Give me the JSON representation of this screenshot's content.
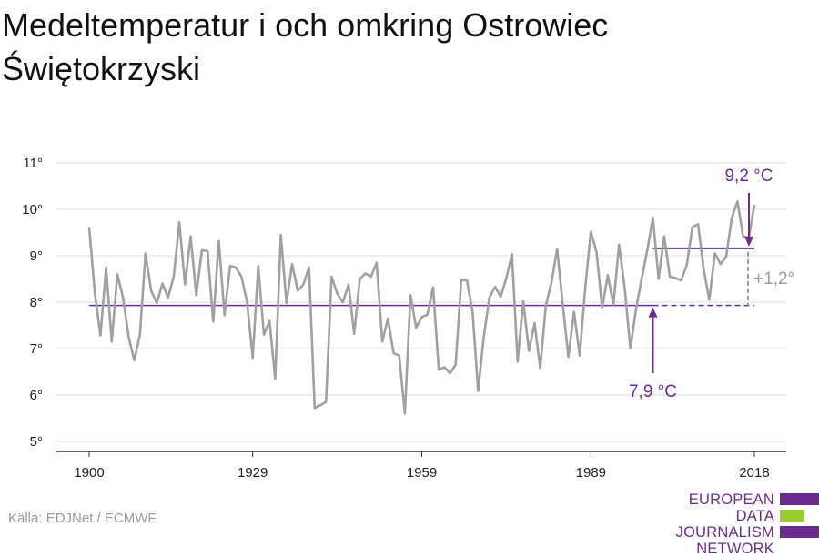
{
  "title": "Medeltemperatur i och omkring Ostrowiec Świętokrzyski",
  "source": "Källa: EDJNet / ECMWF",
  "logo": {
    "lines": [
      "EUROPEAN",
      "DATA JOURNALISM",
      "NETWORK"
    ],
    "colors": [
      "#6b2c91",
      "#9acd32",
      "#6b2c91"
    ]
  },
  "colors": {
    "series": "#a0a0a0",
    "accent": "#6b2c91",
    "delta": "#9a9a9a",
    "grid": "#dddddd",
    "axis": "#333333"
  },
  "chart_data": {
    "type": "line",
    "title": "Medeltemperatur i och omkring Ostrowiec Świętokrzyski",
    "ylim": [
      5,
      11
    ],
    "xlim": [
      1900,
      2018
    ],
    "y_ticks": [
      5,
      6,
      7,
      8,
      9,
      10,
      11
    ],
    "y_tick_labels": [
      "5°",
      "6°",
      "7°",
      "8°",
      "9°",
      "10°",
      "11°"
    ],
    "x_ticks": [
      1900,
      1929,
      1959,
      1989,
      2018
    ],
    "x_tick_labels": [
      "1900",
      "1929",
      "1959",
      "1989",
      "2018"
    ],
    "grid": true,
    "series": [
      {
        "x": [
          1900,
          1901,
          1902,
          1903,
          1904,
          1905,
          1906,
          1907,
          1908,
          1909,
          1910,
          1911,
          1912,
          1913,
          1914,
          1915,
          1916,
          1917,
          1918,
          1919,
          1920,
          1921,
          1922,
          1923,
          1924,
          1925,
          1926,
          1927,
          1928,
          1929,
          1930,
          1931,
          1932,
          1933,
          1934,
          1935,
          1936,
          1937,
          1938,
          1939,
          1940,
          1941,
          1942,
          1943,
          1944,
          1945,
          1946,
          1947,
          1948,
          1949,
          1950,
          1951,
          1952,
          1953,
          1954,
          1955,
          1956,
          1957,
          1958,
          1959,
          1960,
          1961,
          1962,
          1963,
          1964,
          1965,
          1966,
          1967,
          1968,
          1969,
          1970,
          1971,
          1972,
          1973,
          1974,
          1975,
          1976,
          1977,
          1978,
          1979,
          1980,
          1981,
          1982,
          1983,
          1984,
          1985,
          1986,
          1987,
          1988,
          1989,
          1990,
          1991,
          1992,
          1993,
          1994,
          1995,
          1996,
          1997,
          1998,
          1999,
          2000,
          2001,
          2002,
          2003,
          2004,
          2005,
          2006,
          2007,
          2008,
          2009,
          2010,
          2011,
          2012,
          2013,
          2014,
          2015,
          2016,
          2017,
          2018
        ],
        "values": [
          9.62,
          8.2,
          7.28,
          8.75,
          7.15,
          8.6,
          8.1,
          7.25,
          6.75,
          7.3,
          9.05,
          8.25,
          7.98,
          8.4,
          8.1,
          8.55,
          9.72,
          8.38,
          9.42,
          8.15,
          9.12,
          9.1,
          7.58,
          9.32,
          7.72,
          8.78,
          8.75,
          8.55,
          8.0,
          6.8,
          8.78,
          7.3,
          7.6,
          6.35,
          9.45,
          7.98,
          8.82,
          8.25,
          8.38,
          8.75,
          5.72,
          5.78,
          5.85,
          8.55,
          8.18,
          8.0,
          8.38,
          7.32,
          8.5,
          8.62,
          8.55,
          8.85,
          7.15,
          7.65,
          6.9,
          6.85,
          5.6,
          8.15,
          7.45,
          7.68,
          7.73,
          8.32,
          6.55,
          6.6,
          6.47,
          6.65,
          8.48,
          8.47,
          7.8,
          6.08,
          7.25,
          8.1,
          8.33,
          8.12,
          8.52,
          9.04,
          6.72,
          8.02,
          6.95,
          7.55,
          6.58,
          7.92,
          8.42,
          9.15,
          7.95,
          6.82,
          7.79,
          6.85,
          8.32,
          9.52,
          9.08,
          7.88,
          8.58,
          7.95,
          9.24,
          8.3,
          7.0,
          7.85,
          8.5,
          9.12,
          9.82,
          8.5,
          9.42,
          8.55,
          8.52,
          8.47,
          8.8,
          9.62,
          9.68,
          8.72,
          8.05,
          9.05,
          8.82,
          8.98,
          9.82,
          10.17,
          9.42,
          9.38,
          10.1
        ]
      }
    ],
    "reference_lines": [
      {
        "label": "7,9 °C",
        "value": 7.93,
        "x_start": 1900,
        "x_end": 2018
      },
      {
        "label": "9,2 °C",
        "value": 9.16,
        "x_start": 2000,
        "x_end": 2018
      }
    ],
    "annotations": {
      "baseline_label": "7,9 °C",
      "recent_label": "9,2 °C",
      "delta_label": "+1,2°",
      "baseline_arrow_year": 2000,
      "recent_arrow_year": 2018
    }
  }
}
